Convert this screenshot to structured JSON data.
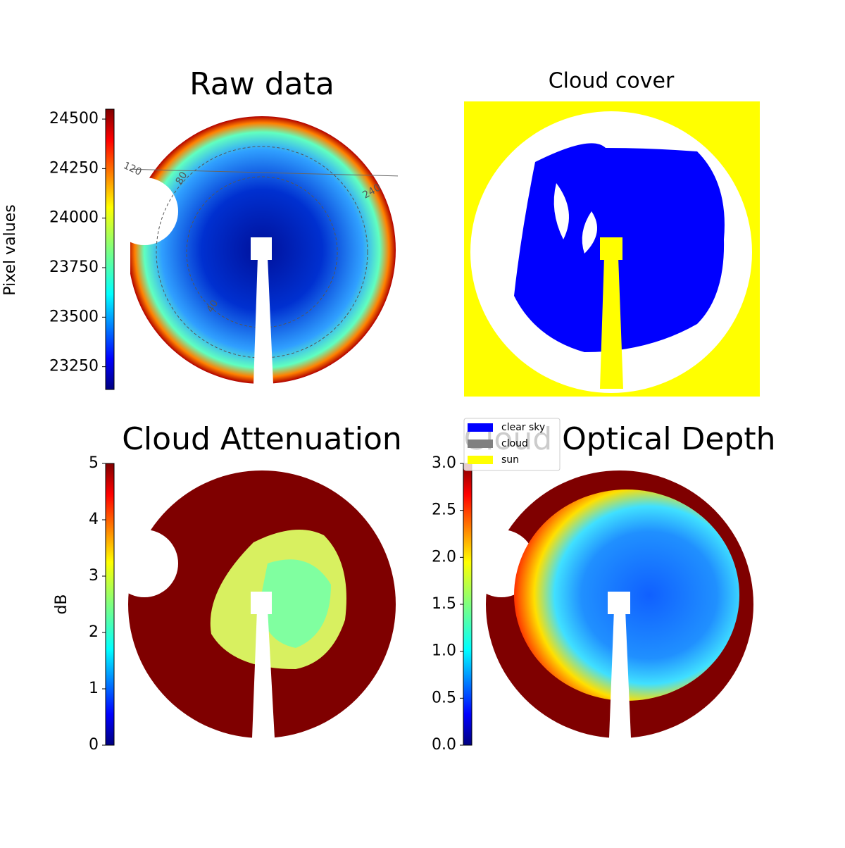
{
  "chart_data": [
    {
      "type": "image",
      "title": "Raw data",
      "ylabel": "Pixel values",
      "ylim": [
        23135,
        24550
      ],
      "yticks": [
        23250,
        23500,
        23750,
        24000,
        24250,
        24500
      ],
      "polar_labels": [
        "120",
        "80",
        "240",
        "40"
      ]
    },
    {
      "type": "image",
      "title": "Cloud cover",
      "legend": [
        {
          "name": "clear sky",
          "color": "#0000ff"
        },
        {
          "name": "cloud",
          "color": "#808080"
        },
        {
          "name": "sun",
          "color": "#ffff00"
        }
      ]
    },
    {
      "type": "image",
      "title": "Cloud Attenuation",
      "ylabel": "dB",
      "ylim": [
        0,
        5
      ],
      "yticks": [
        0,
        1,
        2,
        3,
        4,
        5
      ]
    },
    {
      "type": "image",
      "title": "Cloud Optical Depth",
      "ylim": [
        0,
        3
      ],
      "yticks": [
        {
          "value": 0,
          "label": "0.0"
        },
        {
          "value": 0.5,
          "label": "0.5"
        },
        {
          "value": 1,
          "label": "1.0"
        },
        {
          "value": 1.5,
          "label": "1.5"
        },
        {
          "value": 2,
          "label": "2.0"
        },
        {
          "value": 2.5,
          "label": "2.5"
        },
        {
          "value": 3,
          "label": "3.0"
        }
      ]
    }
  ]
}
